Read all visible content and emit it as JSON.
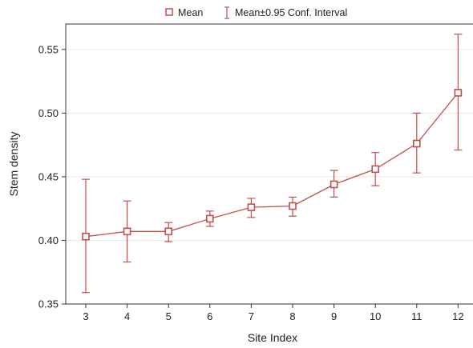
{
  "chart_data": {
    "type": "line",
    "xlabel": "Site Index",
    "ylabel": "Stem density",
    "x": [
      3,
      4,
      5,
      6,
      7,
      8,
      9,
      10,
      11,
      12
    ],
    "xticks": [
      "3",
      "4",
      "5",
      "6",
      "7",
      "8",
      "9",
      "10",
      "11",
      "12"
    ],
    "yticks": [
      "0.35",
      "0.40",
      "0.45",
      "0.50",
      "0.55"
    ],
    "ylim": [
      0.35,
      0.57
    ],
    "grid": "horizontal",
    "legend_position": "top-center",
    "series": [
      {
        "name": "Mean",
        "values": [
          0.403,
          0.407,
          0.407,
          0.417,
          0.426,
          0.427,
          0.444,
          0.456,
          0.476,
          0.516
        ]
      },
      {
        "name": "Mean±0.95 Conf. Interval",
        "lower": [
          0.359,
          0.383,
          0.399,
          0.411,
          0.418,
          0.419,
          0.434,
          0.443,
          0.453,
          0.471
        ],
        "upper": [
          0.448,
          0.431,
          0.414,
          0.423,
          0.433,
          0.434,
          0.455,
          0.469,
          0.5,
          0.562
        ]
      }
    ],
    "color": "#c0504d"
  }
}
